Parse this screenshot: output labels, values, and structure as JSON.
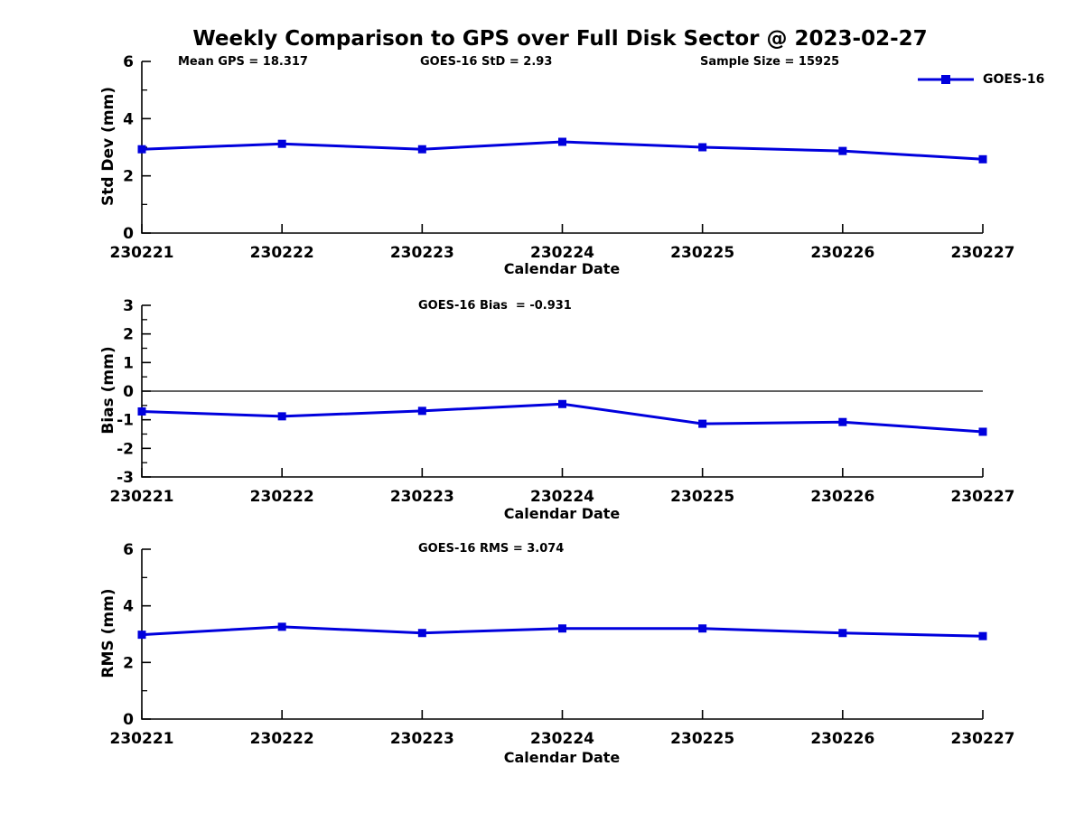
{
  "page": {
    "title": "Weekly Comparison to GPS over Full Disk Sector @ 2023-02-27"
  },
  "legend": {
    "label": "GOES-16",
    "position": "top-right"
  },
  "colors": {
    "line": "#0000dd",
    "marker": "#0000dd",
    "axis": "#000000",
    "zero_line": "#000000",
    "text": "#000000",
    "background": "#ffffff"
  },
  "chart_data": [
    {
      "type": "line",
      "name": "std-dev",
      "categories": [
        "230221",
        "230222",
        "230223",
        "230224",
        "230225",
        "230226",
        "230227"
      ],
      "series": [
        {
          "name": "GOES-16",
          "values": [
            2.93,
            3.12,
            2.93,
            3.19,
            3.0,
            2.87,
            2.58
          ]
        }
      ],
      "xlabel": "Calendar Date",
      "ylabel": "Std Dev (mm)",
      "ylim": [
        0,
        6
      ],
      "yticks": [
        0,
        2,
        4,
        6
      ],
      "yticks_minor": [
        1,
        3,
        5
      ],
      "zero_line": false,
      "grid": false,
      "legend_position": "top-right",
      "annotations": [
        {
          "text": "Mean GPS = 18.317"
        },
        {
          "text": "GOES-16 StD = 2.93"
        },
        {
          "text": "Sample Size = 15925"
        }
      ]
    },
    {
      "type": "line",
      "name": "bias",
      "categories": [
        "230221",
        "230222",
        "230223",
        "230224",
        "230225",
        "230226",
        "230227"
      ],
      "series": [
        {
          "name": "GOES-16",
          "values": [
            -0.71,
            -0.88,
            -0.69,
            -0.45,
            -1.14,
            -1.08,
            -1.42
          ]
        }
      ],
      "xlabel": "Calendar Date",
      "ylabel": "Bias (mm)",
      "ylim": [
        -3,
        3
      ],
      "yticks": [
        -3,
        -2,
        -1,
        0,
        1,
        2,
        3
      ],
      "yticks_minor": [
        -2.5,
        -1.5,
        -0.5,
        0.5,
        1.5,
        2.5
      ],
      "zero_line": true,
      "grid": false,
      "annotations": [
        {
          "text": "GOES-16 Bias  = -0.931"
        }
      ]
    },
    {
      "type": "line",
      "name": "rms",
      "categories": [
        "230221",
        "230222",
        "230223",
        "230224",
        "230225",
        "230226",
        "230227"
      ],
      "series": [
        {
          "name": "GOES-16",
          "values": [
            2.98,
            3.26,
            3.04,
            3.2,
            3.2,
            3.04,
            2.93
          ]
        }
      ],
      "xlabel": "Calendar Date",
      "ylabel": "RMS (mm)",
      "ylim": [
        0,
        6
      ],
      "yticks": [
        0,
        2,
        4,
        6
      ],
      "yticks_minor": [
        1,
        3,
        5
      ],
      "zero_line": false,
      "grid": false,
      "annotations": [
        {
          "text": "GOES-16 RMS = 3.074"
        }
      ]
    }
  ]
}
